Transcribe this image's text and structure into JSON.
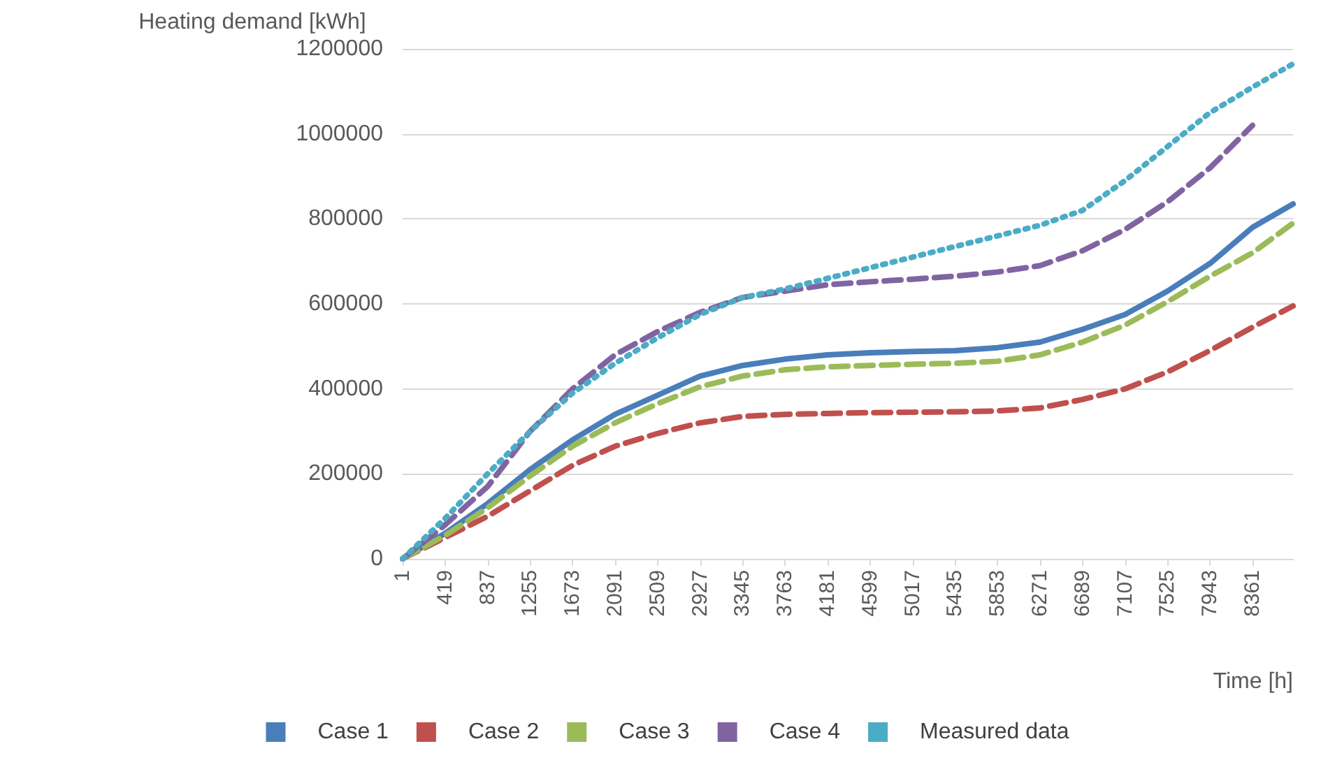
{
  "chart_data": {
    "type": "line",
    "xlabel": "Time [h]",
    "ylabel": "Heating demand [kWh]",
    "x": [
      1,
      419,
      837,
      1255,
      1673,
      2091,
      2509,
      2927,
      3345,
      3763,
      4181,
      4599,
      5017,
      5435,
      5853,
      6271,
      6689,
      7107,
      7525,
      7943,
      8361,
      8760
    ],
    "xlim": [
      1,
      8760
    ],
    "xticks": [
      1,
      419,
      837,
      1255,
      1673,
      2091,
      2509,
      2927,
      3345,
      3763,
      4181,
      4599,
      5017,
      5435,
      5853,
      6271,
      6689,
      7107,
      7525,
      7943,
      8361
    ],
    "ylim": [
      0,
      1200000
    ],
    "yticks": [
      0,
      200000,
      400000,
      600000,
      800000,
      1000000,
      1200000
    ],
    "grid": "y",
    "legend": "bottom",
    "marker": "none",
    "series": [
      {
        "name": "Case 1",
        "color": "#4a7ebb",
        "line_style": "solid",
        "values": [
          0,
          60000,
          130000,
          210000,
          280000,
          340000,
          385000,
          430000,
          455000,
          470000,
          480000,
          485000,
          488000,
          490000,
          497000,
          510000,
          540000,
          575000,
          630000,
          695000,
          780000,
          835000
        ]
      },
      {
        "name": "Case 2",
        "color": "#c0504d",
        "line_style": "dashed",
        "values": [
          0,
          50000,
          100000,
          160000,
          220000,
          265000,
          295000,
          320000,
          335000,
          340000,
          342000,
          344000,
          345000,
          346000,
          348000,
          355000,
          375000,
          400000,
          440000,
          490000,
          545000,
          595000
        ]
      },
      {
        "name": "Case 3",
        "color": "#9bbb59",
        "line_style": "dashed",
        "values": [
          0,
          55000,
          120000,
          195000,
          265000,
          320000,
          365000,
          405000,
          430000,
          445000,
          452000,
          455000,
          458000,
          460000,
          465000,
          480000,
          510000,
          550000,
          605000,
          665000,
          720000,
          790000
        ]
      },
      {
        "name": "Case 4",
        "color": "#8064a2",
        "line_style": "dashed",
        "values": [
          0,
          80000,
          170000,
          300000,
          400000,
          480000,
          535000,
          580000,
          615000,
          630000,
          645000,
          652000,
          658000,
          665000,
          675000,
          690000,
          725000,
          775000,
          840000,
          920000,
          1020000,
          null
        ]
      },
      {
        "name": "Measured data",
        "color": "#4bacc6",
        "line_style": "dotted",
        "values": [
          0,
          95000,
          200000,
          300000,
          390000,
          460000,
          520000,
          575000,
          615000,
          635000,
          660000,
          685000,
          710000,
          735000,
          760000,
          785000,
          820000,
          890000,
          970000,
          1050000,
          1110000,
          1165000
        ]
      }
    ]
  }
}
